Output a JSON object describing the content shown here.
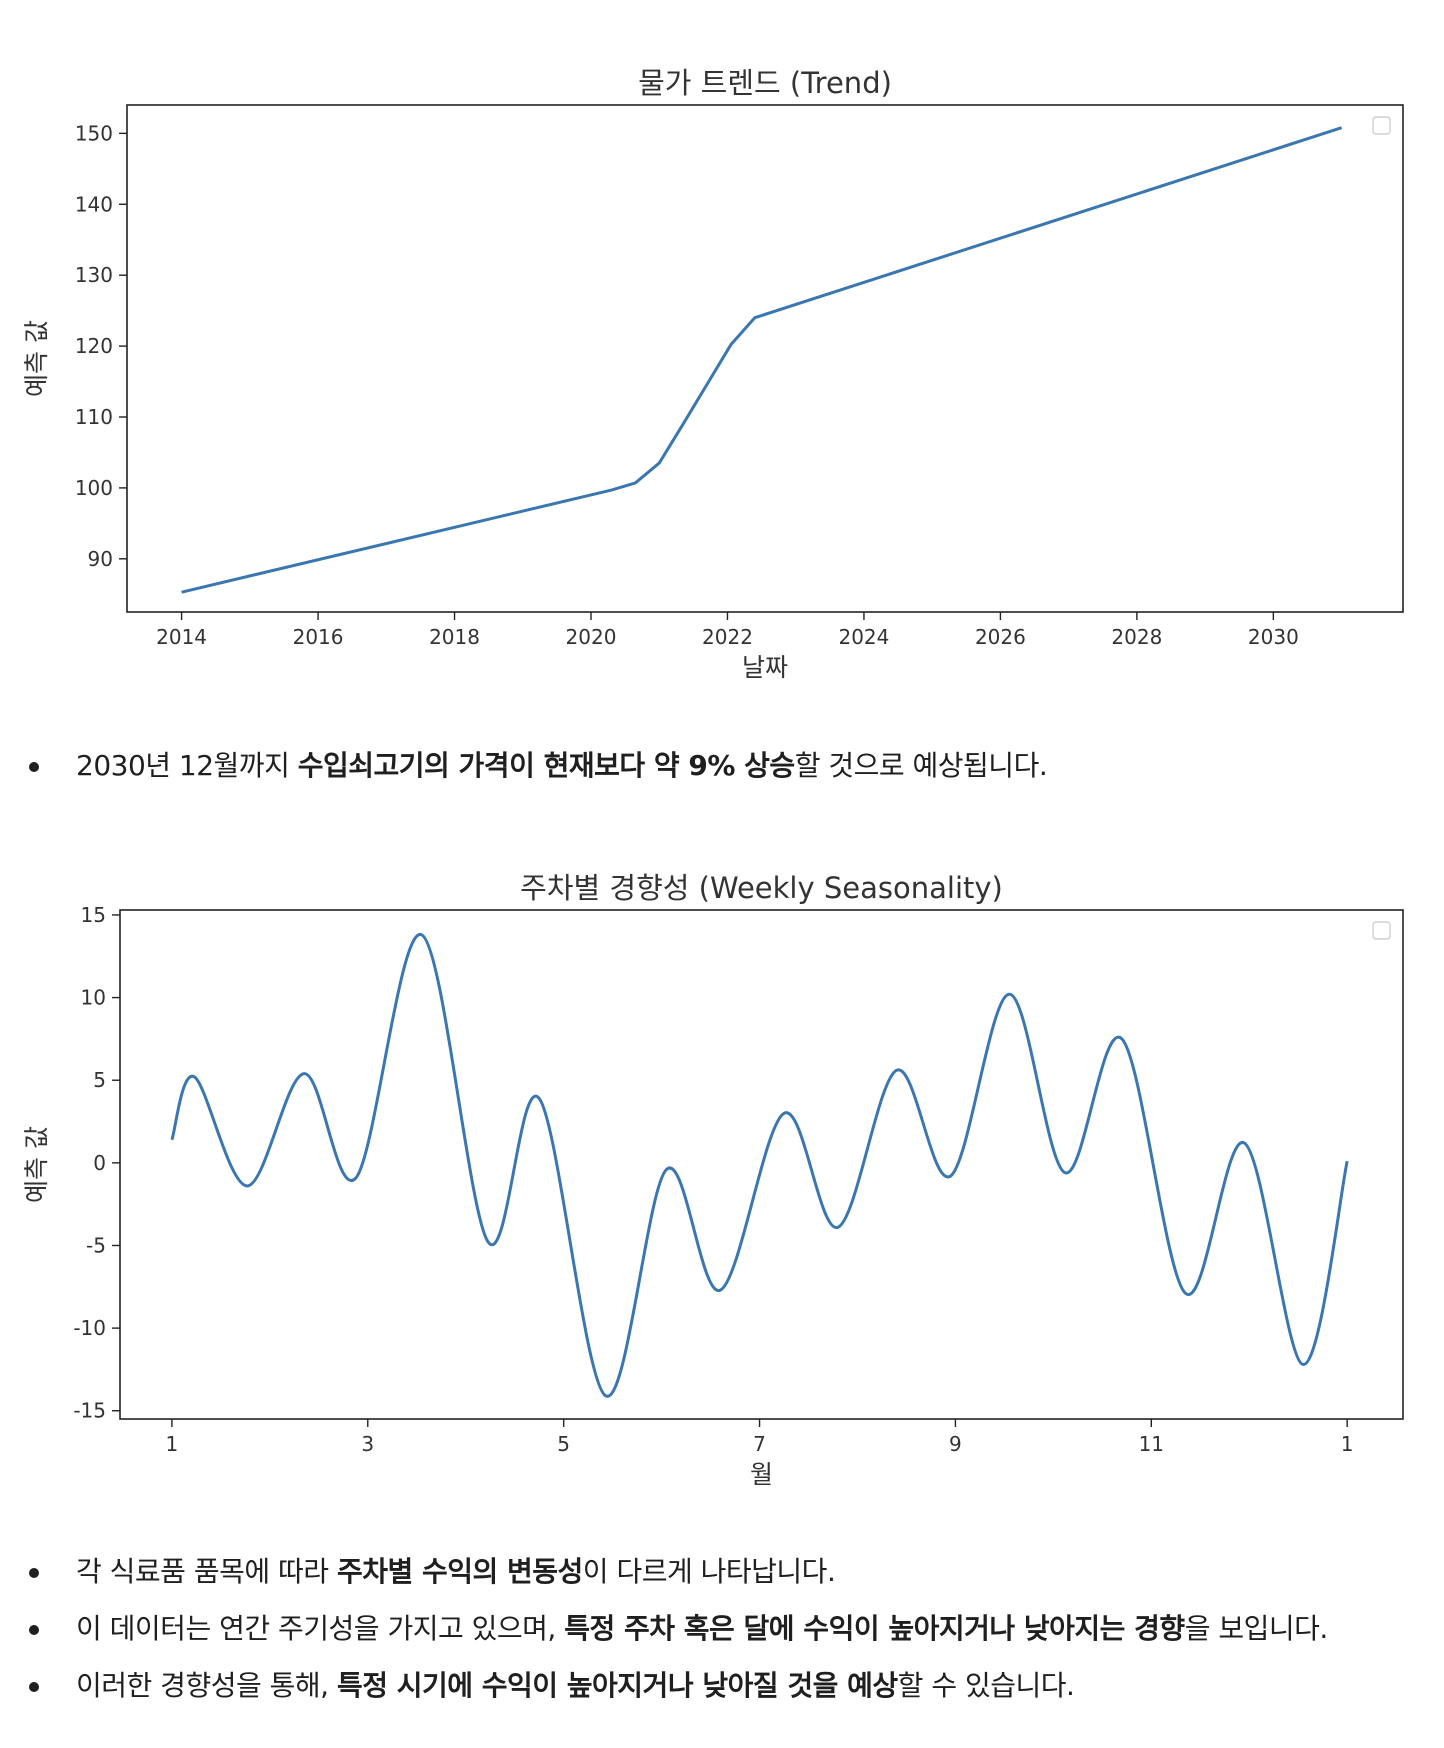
{
  "chart_data": [
    {
      "type": "line",
      "title": "물가 트렌드 (Trend)",
      "xlabel": "날짜",
      "ylabel": "예측 값",
      "xlim": [
        2013.2,
        2031.9
      ],
      "ylim": [
        82.5,
        154
      ],
      "xticks": [
        "2014",
        "2016",
        "2018",
        "2020",
        "2022",
        "2024",
        "2026",
        "2028",
        "2030"
      ],
      "yticks": [
        "90",
        "100",
        "110",
        "120",
        "130",
        "140",
        "150"
      ],
      "legend": "top-right (empty)",
      "grid": false,
      "color": "#3a76b0",
      "series": [
        {
          "x": [
            2014.0,
            2020.3,
            2020.65,
            2021.0,
            2021.35,
            2021.7,
            2022.05,
            2022.4,
            2031.0
          ],
          "y": [
            85.3,
            99.7,
            100.7,
            103.5,
            109.0,
            114.6,
            120.2,
            124.0,
            150.8
          ]
        }
      ]
    },
    {
      "type": "line",
      "title": "주차별 경향성 (Weekly Seasonality)",
      "xlabel": "월",
      "ylabel": "예측 값",
      "xlim": [
        0.47,
        13.57
      ],
      "ylim": [
        -15.5,
        15.3
      ],
      "xticks": [
        "1",
        "3",
        "5",
        "7",
        "9",
        "11",
        "1"
      ],
      "yticks": [
        "15",
        "10",
        "5",
        "0",
        "-5",
        "-10",
        "-15"
      ],
      "legend": "top-right (empty)",
      "grid": false,
      "color": "#3a76b0",
      "series": [
        {
          "x": [
            1.0,
            1.23,
            1.77,
            2.35,
            2.88,
            3.55,
            4.23,
            4.75,
            5.43,
            6.05,
            6.6,
            7.25,
            7.8,
            8.4,
            8.95,
            9.55,
            10.12,
            10.7,
            11.35,
            11.95,
            12.55,
            13.0
          ],
          "y": [
            1.4,
            5.2,
            -1.4,
            5.4,
            -0.9,
            13.8,
            -4.8,
            3.9,
            -14.1,
            -0.4,
            -7.7,
            3.0,
            -3.9,
            5.6,
            -0.8,
            10.2,
            -0.6,
            7.5,
            -7.9,
            1.2,
            -12.2,
            0.1
          ]
        }
      ]
    }
  ],
  "text": {
    "bullet1": {
      "p1": "2030년 12월까지 ",
      "b1": "수입쇠고기의 가격이 현재보다 약 9% 상승",
      "p2": "할 것으로 예상됩니다."
    },
    "bullet2": {
      "p1": "각 식료품 품목에 따라 ",
      "b1": "주차별 수익의 변동성",
      "p2": "이 다르게 나타납니다."
    },
    "bullet3": {
      "p1": "이 데이터는 연간 주기성을 가지고 있으며, ",
      "b1": "특정 주차 혹은 달에 수익이 높아지거나 낮아지는 경향",
      "p2": "을 보입니다."
    },
    "bullet4": {
      "p1": "이러한 경향성을 통해, ",
      "b1": "특정 시기에 수익이 높아지거나 낮아질 것을 예상",
      "p2": "할 수 있습니다."
    }
  }
}
